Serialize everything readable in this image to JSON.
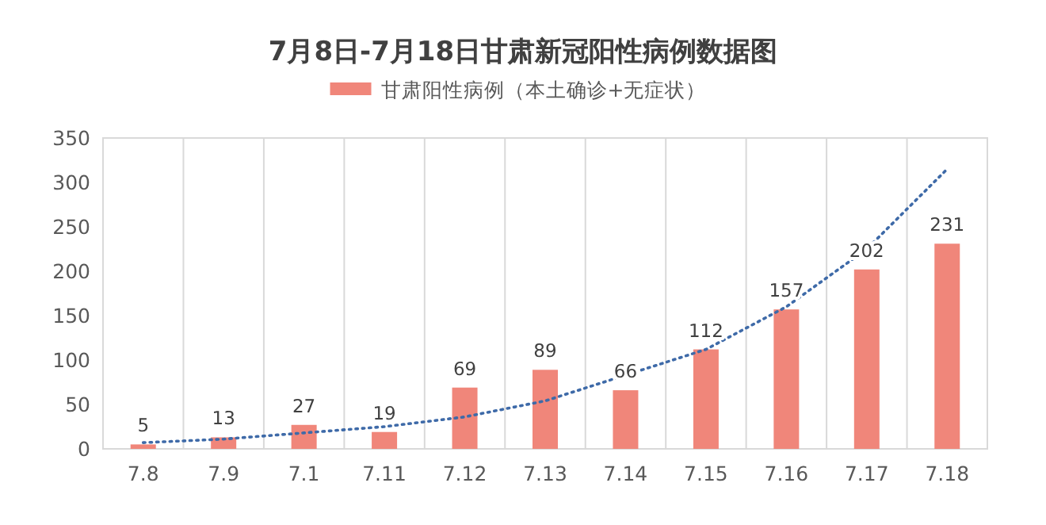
{
  "chart_data": {
    "type": "bar",
    "title": "7月8日-7月18日甘肃新冠阳性病例数据图",
    "categories": [
      "7.8",
      "7.9",
      "7.1",
      "7.11",
      "7.12",
      "7.13",
      "7.14",
      "7.15",
      "7.16",
      "7.17",
      "7.18"
    ],
    "series": [
      {
        "name": "甘肃阳性病例（本土确诊+无症状）",
        "color": "#f0867a",
        "values": [
          5,
          13,
          27,
          19,
          69,
          89,
          66,
          112,
          157,
          202,
          231
        ],
        "value_labels": [
          "5",
          "13",
          "27",
          "19",
          "69",
          "89",
          "66",
          "112",
          "157",
          "202",
          "231"
        ]
      },
      {
        "type": "line",
        "color": "#3e6aa8",
        "line_style": "dotted",
        "marker": "none",
        "values": [
          7,
          11,
          18,
          25,
          36,
          54,
          83,
          112,
          160,
          225,
          315
        ]
      }
    ],
    "ylim": [
      0,
      350
    ],
    "yticks": [
      0,
      50,
      100,
      150,
      200,
      250,
      300,
      350
    ],
    "grid": "x",
    "legend": "top"
  }
}
